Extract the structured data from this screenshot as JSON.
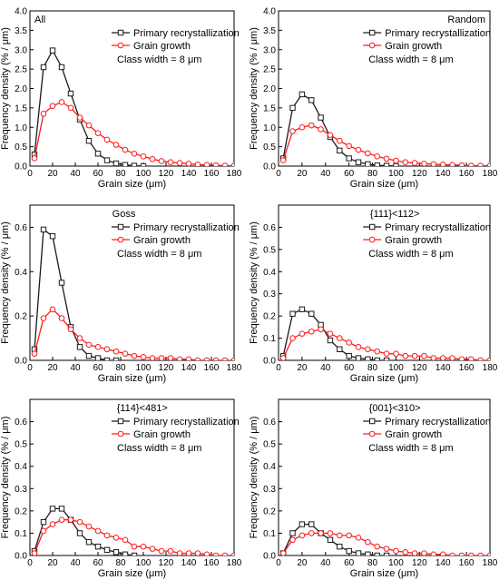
{
  "colors": {
    "primary_recrystallization": "#1a1a1a",
    "grain_growth": "#ff1a1a",
    "axis": "#000000"
  },
  "chart_data": [
    {
      "type": "line",
      "title": "All",
      "xlabel": "Grain size (μm)",
      "ylabel": "Frequency density (% / μm)",
      "xlim": [
        0,
        180
      ],
      "ylim": [
        0,
        4.0
      ],
      "xticks": [
        0,
        20,
        40,
        60,
        80,
        100,
        120,
        140,
        160,
        180
      ],
      "yticks": [
        0.0,
        0.5,
        1.0,
        1.5,
        2.0,
        2.5,
        3.0,
        3.5,
        4.0
      ],
      "ytick_labels": [
        "0.0",
        "0.5",
        "1.0",
        "1.5",
        "2.0",
        "2.5",
        "3.0",
        "3.5",
        "4.0"
      ],
      "annotation": "Class width = 8 μm",
      "legend_position": "top-right",
      "series": [
        {
          "name": "Primary recrystallization",
          "color": "#1a1a1a",
          "marker": "square",
          "x": [
            4,
            12,
            20,
            28,
            36,
            44,
            52,
            60,
            68,
            76,
            84,
            92,
            100
          ],
          "y": [
            0.3,
            2.55,
            2.98,
            2.55,
            1.87,
            1.2,
            0.65,
            0.32,
            0.15,
            0.07,
            0.03,
            0.01,
            0.0
          ]
        },
        {
          "name": "Grain growth",
          "color": "#ff1a1a",
          "marker": "circle",
          "x": [
            4,
            12,
            20,
            28,
            36,
            44,
            52,
            60,
            68,
            76,
            84,
            92,
            100,
            108,
            116,
            124,
            132,
            140,
            148,
            156,
            164,
            172,
            180
          ],
          "y": [
            0.2,
            1.35,
            1.55,
            1.65,
            1.5,
            1.25,
            1.05,
            0.85,
            0.68,
            0.55,
            0.42,
            0.32,
            0.25,
            0.18,
            0.13,
            0.1,
            0.08,
            0.06,
            0.04,
            0.03,
            0.02,
            0.01,
            0.01
          ]
        }
      ]
    },
    {
      "type": "line",
      "title": "Random",
      "xlabel": "Grain size (μm)",
      "ylabel": "Frequency density (% / μm)",
      "xlim": [
        0,
        180
      ],
      "ylim": [
        0,
        4.0
      ],
      "xticks": [
        0,
        20,
        40,
        60,
        80,
        100,
        120,
        140,
        160,
        180
      ],
      "yticks": [
        0.0,
        0.5,
        1.0,
        1.5,
        2.0,
        2.5,
        3.0,
        3.5,
        4.0
      ],
      "ytick_labels": [
        "0.0",
        "0.5",
        "1.0",
        "1.5",
        "2.0",
        "2.5",
        "3.0",
        "3.5",
        "4.0"
      ],
      "annotation": "Class width = 8 μm",
      "legend_position": "top-right",
      "series": [
        {
          "name": "Primary recrystallization",
          "color": "#1a1a1a",
          "marker": "square",
          "x": [
            4,
            12,
            20,
            28,
            36,
            44,
            52,
            60,
            68,
            76,
            84,
            92,
            100
          ],
          "y": [
            0.2,
            1.5,
            1.85,
            1.7,
            1.25,
            0.75,
            0.4,
            0.2,
            0.1,
            0.05,
            0.02,
            0.01,
            0.0
          ]
        },
        {
          "name": "Grain growth",
          "color": "#ff1a1a",
          "marker": "circle",
          "x": [
            4,
            12,
            20,
            28,
            36,
            44,
            52,
            60,
            68,
            76,
            84,
            92,
            100,
            108,
            116,
            124,
            132,
            140,
            148,
            156,
            164,
            172,
            180
          ],
          "y": [
            0.15,
            0.9,
            1.0,
            1.05,
            0.95,
            0.8,
            0.65,
            0.52,
            0.42,
            0.33,
            0.25,
            0.19,
            0.14,
            0.1,
            0.08,
            0.06,
            0.05,
            0.04,
            0.03,
            0.02,
            0.01,
            0.01,
            0.01
          ]
        }
      ]
    },
    {
      "type": "line",
      "title": "Goss",
      "xlabel": "Grain size (μm)",
      "ylabel": "Frequency density (% / μm)",
      "xlim": [
        0,
        180
      ],
      "ylim": [
        0,
        0.7
      ],
      "xticks": [
        0,
        20,
        40,
        60,
        80,
        100,
        120,
        140,
        160,
        180
      ],
      "yticks": [
        0.0,
        0.2,
        0.4,
        0.6
      ],
      "ytick_labels": [
        "0.0",
        "0.2",
        "0.4",
        "0.6"
      ],
      "annotation": "Class width = 8 μm",
      "legend_position": "top-right",
      "series": [
        {
          "name": "Primary recrystallization",
          "color": "#1a1a1a",
          "marker": "square",
          "x": [
            4,
            12,
            20,
            28,
            36,
            44,
            52,
            60,
            68,
            76
          ],
          "y": [
            0.05,
            0.59,
            0.56,
            0.35,
            0.15,
            0.06,
            0.02,
            0.01,
            0.0,
            0.0
          ]
        },
        {
          "name": "Grain growth",
          "color": "#ff1a1a",
          "marker": "circle",
          "x": [
            4,
            12,
            20,
            28,
            36,
            44,
            52,
            60,
            68,
            76,
            84,
            92,
            100,
            108,
            116,
            124,
            132,
            140,
            148,
            156,
            164,
            172,
            180
          ],
          "y": [
            0.03,
            0.19,
            0.23,
            0.19,
            0.14,
            0.1,
            0.07,
            0.06,
            0.05,
            0.04,
            0.03,
            0.02,
            0.015,
            0.01,
            0.01,
            0.01,
            0.005,
            0.005,
            0.0,
            0.0,
            0.0,
            0.0,
            0.0
          ]
        }
      ]
    },
    {
      "type": "line",
      "title": "{111}<112>",
      "xlabel": "Grain size (μm)",
      "ylabel": "Frequency density (% / μm)",
      "xlim": [
        0,
        180
      ],
      "ylim": [
        0,
        0.7
      ],
      "xticks": [
        0,
        20,
        40,
        60,
        80,
        100,
        120,
        140,
        160,
        180
      ],
      "yticks": [
        0.0,
        0.1,
        0.2,
        0.3,
        0.4,
        0.5,
        0.6
      ],
      "ytick_labels": [
        "0.0",
        "0.1",
        "0.2",
        "0.3",
        "0.4",
        "0.5",
        "0.6"
      ],
      "annotation": "Class width = 8 μm",
      "legend_position": "top-right",
      "series": [
        {
          "name": "Primary recrystallization",
          "color": "#1a1a1a",
          "marker": "square",
          "x": [
            4,
            12,
            20,
            28,
            36,
            44,
            52,
            60,
            68,
            76,
            84,
            92
          ],
          "y": [
            0.02,
            0.21,
            0.23,
            0.21,
            0.16,
            0.09,
            0.05,
            0.02,
            0.01,
            0.005,
            0.0,
            0.0
          ]
        },
        {
          "name": "Grain growth",
          "color": "#ff1a1a",
          "marker": "circle",
          "x": [
            4,
            12,
            20,
            28,
            36,
            44,
            52,
            60,
            68,
            76,
            84,
            92,
            100,
            108,
            116,
            124,
            132,
            140,
            148,
            156,
            164,
            172,
            180
          ],
          "y": [
            0.01,
            0.1,
            0.12,
            0.13,
            0.14,
            0.12,
            0.1,
            0.08,
            0.06,
            0.05,
            0.04,
            0.03,
            0.03,
            0.02,
            0.02,
            0.02,
            0.01,
            0.01,
            0.01,
            0.005,
            0.005,
            0.0,
            0.0
          ]
        }
      ]
    },
    {
      "type": "line",
      "title": "{114}<481>",
      "xlabel": "Grain size (μm)",
      "ylabel": "Frequency density (% / μm)",
      "xlim": [
        0,
        180
      ],
      "ylim": [
        0,
        0.7
      ],
      "xticks": [
        0,
        20,
        40,
        60,
        80,
        100,
        120,
        140,
        160,
        180
      ],
      "yticks": [
        0.0,
        0.1,
        0.2,
        0.3,
        0.4,
        0.5,
        0.6
      ],
      "ytick_labels": [
        "0.0",
        "0.1",
        "0.2",
        "0.3",
        "0.4",
        "0.5",
        "0.6"
      ],
      "annotation": "Class width = 8 μm",
      "legend_position": "top-right",
      "series": [
        {
          "name": "Primary recrystallization",
          "color": "#1a1a1a",
          "marker": "square",
          "x": [
            4,
            12,
            20,
            28,
            36,
            44,
            52,
            60,
            68,
            76,
            84,
            92
          ],
          "y": [
            0.02,
            0.15,
            0.21,
            0.21,
            0.16,
            0.1,
            0.06,
            0.04,
            0.025,
            0.015,
            0.005,
            0.0
          ]
        },
        {
          "name": "Grain growth",
          "color": "#ff1a1a",
          "marker": "circle",
          "x": [
            4,
            12,
            20,
            28,
            36,
            44,
            52,
            60,
            68,
            76,
            84,
            92,
            100,
            108,
            116,
            124,
            132,
            140,
            148,
            156,
            164,
            172,
            180
          ],
          "y": [
            0.01,
            0.11,
            0.14,
            0.16,
            0.16,
            0.15,
            0.13,
            0.11,
            0.09,
            0.08,
            0.07,
            0.04,
            0.04,
            0.03,
            0.02,
            0.02,
            0.01,
            0.01,
            0.01,
            0.005,
            0.0,
            0.0,
            0.0
          ]
        }
      ]
    },
    {
      "type": "line",
      "title": "{001}<310>",
      "xlabel": "Grain size (μm)",
      "ylabel": "Frequency density (% / μm)",
      "xlim": [
        0,
        180
      ],
      "ylim": [
        0,
        0.7
      ],
      "xticks": [
        0,
        20,
        40,
        60,
        80,
        100,
        120,
        140,
        160,
        180
      ],
      "yticks": [
        0.0,
        0.1,
        0.2,
        0.3,
        0.4,
        0.5,
        0.6
      ],
      "ytick_labels": [
        "0.0",
        "0.1",
        "0.2",
        "0.3",
        "0.4",
        "0.5",
        "0.6"
      ],
      "annotation": "Class width = 8 μm",
      "legend_position": "top-right",
      "series": [
        {
          "name": "Primary recrystallization",
          "color": "#1a1a1a",
          "marker": "square",
          "x": [
            4,
            12,
            20,
            28,
            36,
            44,
            52,
            60,
            68,
            76,
            84,
            92
          ],
          "y": [
            0.01,
            0.1,
            0.14,
            0.14,
            0.1,
            0.07,
            0.04,
            0.02,
            0.01,
            0.005,
            0.0,
            0.0
          ]
        },
        {
          "name": "Grain growth",
          "color": "#ff1a1a",
          "marker": "circle",
          "x": [
            4,
            12,
            20,
            28,
            36,
            44,
            52,
            60,
            68,
            76,
            84,
            92,
            100,
            108,
            116,
            124,
            132,
            140,
            148,
            156,
            164,
            172,
            180
          ],
          "y": [
            0.01,
            0.07,
            0.09,
            0.1,
            0.1,
            0.1,
            0.09,
            0.09,
            0.08,
            0.06,
            0.04,
            0.03,
            0.02,
            0.015,
            0.01,
            0.01,
            0.005,
            0.005,
            0.0,
            0.0,
            0.0,
            0.0,
            0.0
          ]
        }
      ]
    }
  ]
}
